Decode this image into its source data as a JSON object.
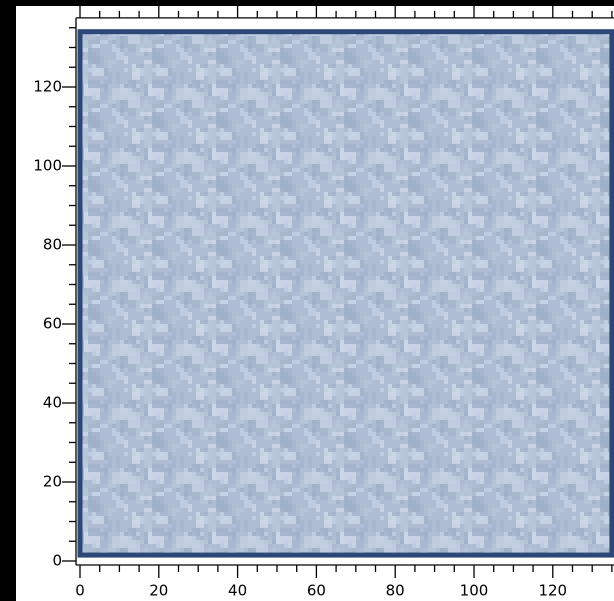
{
  "chart_data": {
    "type": "image",
    "xlim": [
      0,
      135.5
    ],
    "ylim": [
      0,
      137.5
    ],
    "xticks": [
      0,
      20,
      40,
      60,
      80,
      100,
      120
    ],
    "yticks": [
      0,
      20,
      40,
      60,
      80,
      100,
      120
    ],
    "image_x": [
      0,
      135
    ],
    "image_y": [
      1.5,
      134
    ],
    "color": "#aebdd3",
    "frame_color": "#2b4878"
  }
}
